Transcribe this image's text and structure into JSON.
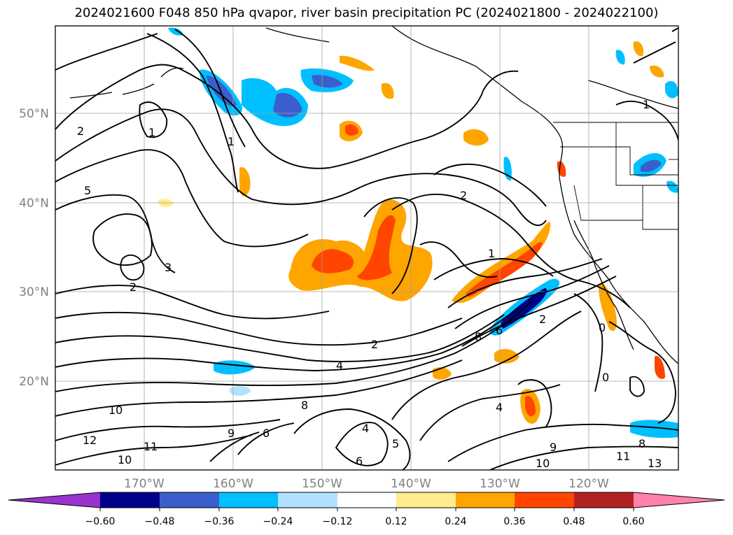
{
  "title": "2024021600 F048 850 hPa qvapor, river basin precipitation PC (2024021800 - 2024022100)",
  "lon_labels": [
    "170°W",
    "160°W",
    "150°W",
    "140°W",
    "130°W",
    "120°W"
  ],
  "lat_labels": [
    "50°N",
    "40°N",
    "30°N",
    "20°N"
  ],
  "colorbar": {
    "tick_labels": [
      "−0.60",
      "−0.48",
      "−0.36",
      "−0.24",
      "−0.12",
      "0.12",
      "0.24",
      "0.36",
      "0.48",
      "0.60"
    ],
    "colors": {
      "below_min": "#9a32cd",
      "bin_1": "#00008b",
      "bin_2": "#3a5fcd",
      "bin_3": "#00bfff",
      "bin_4": "#b0e2ff",
      "bin_5": "#ffffff",
      "bin_6": "#ffec8b",
      "bin_7": "#ffa500",
      "bin_8": "#ff4500",
      "bin_9": "#b22222",
      "above_max": "#ff82ab"
    }
  },
  "contour_labels": [
    "2",
    "1",
    "5",
    "3",
    "2",
    "1",
    "2",
    "1",
    "8",
    "6",
    "4",
    "2",
    "10",
    "12",
    "11",
    "10",
    "9",
    "8",
    "6",
    "4",
    "0",
    "2",
    "4",
    "5",
    "6",
    "8",
    "9",
    "10",
    "11",
    "13",
    "0",
    "1"
  ]
}
